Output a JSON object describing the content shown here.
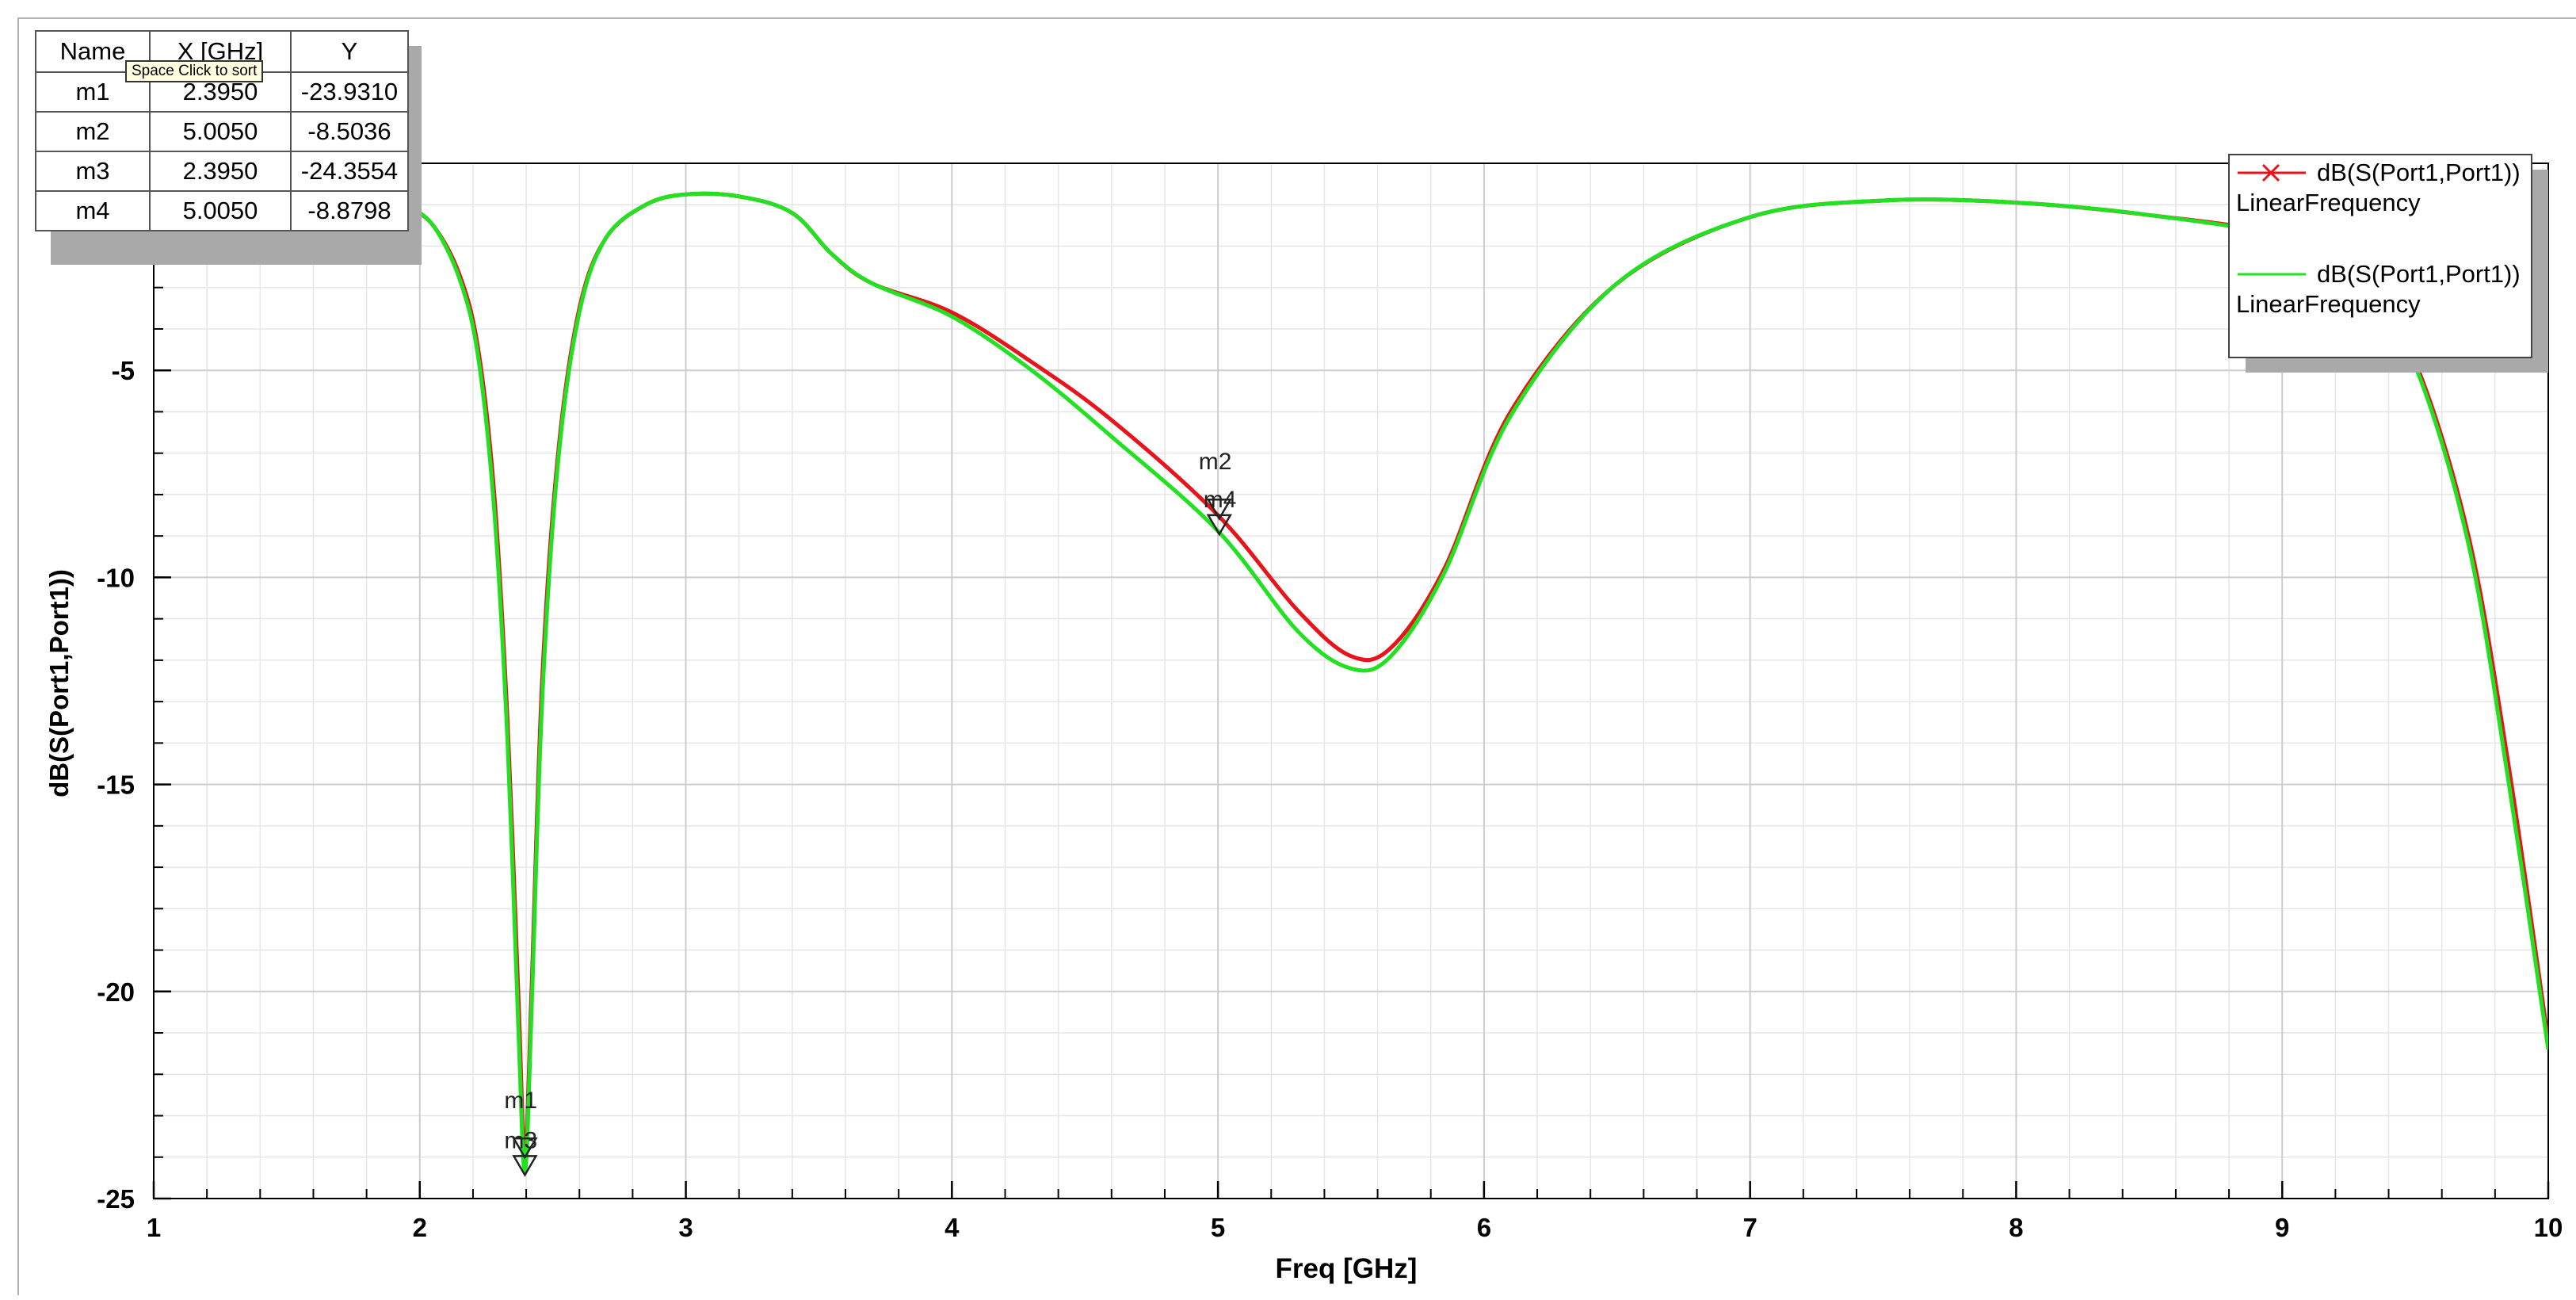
{
  "chart_data": {
    "type": "line",
    "xlabel": "Freq [GHz]",
    "ylabel": "dB(S(Port1,Port1))",
    "xlim": [
      1,
      10
    ],
    "ylim": [
      -25,
      0
    ],
    "x_ticks": [
      "1",
      "2",
      "3",
      "4",
      "5",
      "6",
      "7",
      "8",
      "9",
      "10"
    ],
    "y_ticks": [
      "-5",
      "-10",
      "-15",
      "-20",
      "-25"
    ],
    "grid": true,
    "legend_position": "top-right",
    "series": [
      {
        "name": "dB(S(Port1,Port1))",
        "subtitle": "LinearFrequency",
        "color": "#e8141b",
        "x": [
          1.95,
          2.05,
          2.15,
          2.22,
          2.28,
          2.33,
          2.37,
          2.395,
          2.42,
          2.46,
          2.52,
          2.6,
          2.7,
          2.85,
          3.0,
          3.2,
          3.4,
          3.55,
          3.7,
          4.0,
          4.3,
          4.6,
          5.0,
          5.3,
          5.5,
          5.65,
          5.85,
          6.1,
          6.5,
          7.0,
          7.5,
          8.0,
          8.5,
          9.0,
          9.3,
          9.5,
          9.7,
          9.85,
          10.0
        ],
        "y": [
          -1.0,
          -1.5,
          -2.7,
          -4.5,
          -8.0,
          -13.5,
          -20.0,
          -23.931,
          -20.0,
          -12.5,
          -7.0,
          -3.5,
          -1.8,
          -1.0,
          -0.75,
          -0.8,
          -1.2,
          -2.2,
          -2.9,
          -3.6,
          -4.8,
          -6.2,
          -8.5,
          -10.8,
          -11.9,
          -11.7,
          -9.8,
          -6.0,
          -2.9,
          -1.3,
          -0.9,
          -0.95,
          -1.25,
          -1.75,
          -2.8,
          -4.8,
          -9.0,
          -14.5,
          -21.2
        ]
      },
      {
        "name": "dB(S(Port1,Port1))",
        "subtitle": "LinearFrequency",
        "color": "#22e022",
        "x": [
          1.95,
          2.05,
          2.15,
          2.22,
          2.28,
          2.33,
          2.37,
          2.395,
          2.42,
          2.46,
          2.52,
          2.6,
          2.7,
          2.85,
          3.0,
          3.2,
          3.4,
          3.55,
          3.7,
          4.0,
          4.3,
          4.6,
          5.0,
          5.3,
          5.5,
          5.65,
          5.85,
          6.1,
          6.5,
          7.0,
          7.5,
          8.0,
          8.5,
          9.0,
          9.3,
          9.5,
          9.7,
          9.85,
          10.0
        ],
        "y": [
          -1.0,
          -1.5,
          -2.8,
          -4.7,
          -8.4,
          -14.0,
          -20.8,
          -24.3554,
          -20.5,
          -13.0,
          -7.2,
          -3.6,
          -1.8,
          -1.0,
          -0.75,
          -0.8,
          -1.2,
          -2.2,
          -2.9,
          -3.7,
          -5.0,
          -6.6,
          -8.88,
          -11.3,
          -12.2,
          -11.9,
          -9.9,
          -6.1,
          -2.9,
          -1.3,
          -0.9,
          -0.95,
          -1.25,
          -1.8,
          -2.9,
          -4.9,
          -9.2,
          -14.9,
          -21.4
        ]
      }
    ],
    "markers": [
      {
        "name": "m1",
        "x": 2.395,
        "y": -23.931
      },
      {
        "name": "m2",
        "x": 5.005,
        "y": -8.5036
      },
      {
        "name": "m3",
        "x": 2.395,
        "y": -24.3554
      },
      {
        "name": "m4",
        "x": 5.005,
        "y": -8.8798
      }
    ]
  },
  "marker_table": {
    "headers": [
      "Name",
      "X [GHz]",
      "Y"
    ],
    "rows": [
      [
        "m1",
        "2.3950",
        "-23.9310"
      ],
      [
        "m2",
        "5.0050",
        "-8.5036"
      ],
      [
        "m3",
        "2.3950",
        "-24.3554"
      ],
      [
        "m4",
        "5.0050",
        "-8.8798"
      ]
    ],
    "tooltip": "Space Click to sort"
  },
  "legend": {
    "items": [
      {
        "label": "dB(S(Port1,Port1))",
        "sub": "LinearFrequency",
        "color": "#e8141b"
      },
      {
        "label": "dB(S(Port1,Port1))",
        "sub": "LinearFrequency",
        "color": "#22e022"
      }
    ]
  }
}
